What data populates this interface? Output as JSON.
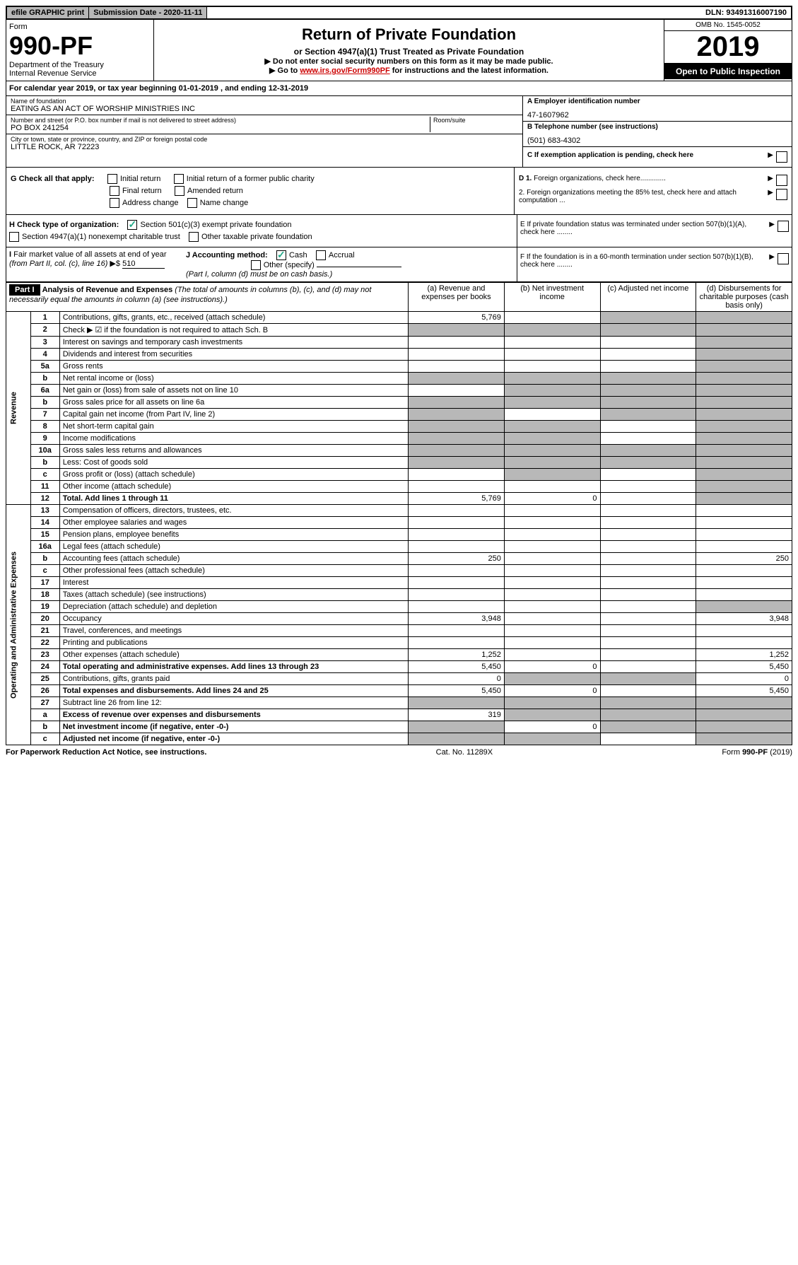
{
  "topbar": {
    "efile": "efile GRAPHIC print",
    "submission": "Submission Date - 2020-11-11",
    "dln": "DLN: 93491316007190"
  },
  "header": {
    "form_label": "Form",
    "form_num": "990-PF",
    "dept": "Department of the Treasury",
    "irs": "Internal Revenue Service",
    "title": "Return of Private Foundation",
    "subtitle": "or Section 4947(a)(1) Trust Treated as Private Foundation",
    "instr1": "▶ Do not enter social security numbers on this form as it may be made public.",
    "instr2_pre": "▶ Go to ",
    "instr2_link": "www.irs.gov/Form990PF",
    "instr2_post": " for instructions and the latest information.",
    "omb": "OMB No. 1545-0052",
    "year": "2019",
    "open": "Open to Public Inspection"
  },
  "calyear": "For calendar year 2019, or tax year beginning 01-01-2019            , and ending 12-31-2019",
  "info": {
    "name_label": "Name of foundation",
    "name": "EATING AS AN ACT OF WORSHIP MINISTRIES INC",
    "addr_label": "Number and street (or P.O. box number if mail is not delivered to street address)",
    "addr": "PO BOX 241254",
    "room_label": "Room/suite",
    "city_label": "City or town, state or province, country, and ZIP or foreign postal code",
    "city": "LITTLE ROCK, AR  72223",
    "ein_label": "A Employer identification number",
    "ein": "47-1607962",
    "phone_label": "B Telephone number (see instructions)",
    "phone": "(501) 683-4302",
    "c_label": "C  If exemption application is pending, check here"
  },
  "checks": {
    "g_label": "G Check all that apply:",
    "g1": "Initial return",
    "g2": "Initial return of a former public charity",
    "g3": "Final return",
    "g4": "Amended return",
    "g5": "Address change",
    "g6": "Name change",
    "h_label": "H Check type of organization:",
    "h1": "Section 501(c)(3) exempt private foundation",
    "h2": "Section 4947(a)(1) nonexempt charitable trust",
    "h3": "Other taxable private foundation",
    "i_label": "I Fair market value of all assets at end of year (from Part II, col. (c), line 16) ▶$",
    "i_val": "510",
    "j_label": "J Accounting method:",
    "j1": "Cash",
    "j2": "Accrual",
    "j3": "Other (specify)",
    "j_note": "(Part I, column (d) must be on cash basis.)",
    "d1": "D 1. Foreign organizations, check here.............",
    "d2": "2. Foreign organizations meeting the 85% test, check here and attach computation ...",
    "e": "E  If private foundation status was terminated under section 507(b)(1)(A), check here ........",
    "f": "F  If the foundation is in a 60-month termination under section 507(b)(1)(B), check here ........"
  },
  "part1": {
    "label": "Part I",
    "title": "Analysis of Revenue and Expenses",
    "note": "(The total of amounts in columns (b), (c), and (d) may not necessarily equal the amounts in column (a) (see instructions).)",
    "cols": {
      "a": "(a) Revenue and expenses per books",
      "b": "(b) Net investment income",
      "c": "(c) Adjusted net income",
      "d": "(d) Disbursements for charitable purposes (cash basis only)"
    }
  },
  "sides": {
    "revenue": "Revenue",
    "expenses": "Operating and Administrative Expenses"
  },
  "rows": [
    {
      "n": "1",
      "desc": "Contributions, gifts, grants, etc., received (attach schedule)",
      "a": "5,769",
      "b": "",
      "c": "grey",
      "d": "grey"
    },
    {
      "n": "2",
      "desc": "Check ▶ ☑ if the foundation is not required to attach Sch. B",
      "a": "grey",
      "b": "grey",
      "c": "grey",
      "d": "grey"
    },
    {
      "n": "3",
      "desc": "Interest on savings and temporary cash investments",
      "a": "",
      "b": "",
      "c": "",
      "d": "grey"
    },
    {
      "n": "4",
      "desc": "Dividends and interest from securities",
      "a": "",
      "b": "",
      "c": "",
      "d": "grey"
    },
    {
      "n": "5a",
      "desc": "Gross rents",
      "a": "",
      "b": "",
      "c": "",
      "d": "grey"
    },
    {
      "n": "b",
      "desc": "Net rental income or (loss)",
      "a": "grey",
      "b": "grey",
      "c": "grey",
      "d": "grey"
    },
    {
      "n": "6a",
      "desc": "Net gain or (loss) from sale of assets not on line 10",
      "a": "",
      "b": "grey",
      "c": "grey",
      "d": "grey"
    },
    {
      "n": "b",
      "desc": "Gross sales price for all assets on line 6a",
      "a": "grey",
      "b": "grey",
      "c": "grey",
      "d": "grey"
    },
    {
      "n": "7",
      "desc": "Capital gain net income (from Part IV, line 2)",
      "a": "grey",
      "b": "",
      "c": "grey",
      "d": "grey"
    },
    {
      "n": "8",
      "desc": "Net short-term capital gain",
      "a": "grey",
      "b": "grey",
      "c": "",
      "d": "grey"
    },
    {
      "n": "9",
      "desc": "Income modifications",
      "a": "grey",
      "b": "grey",
      "c": "",
      "d": "grey"
    },
    {
      "n": "10a",
      "desc": "Gross sales less returns and allowances",
      "a": "grey",
      "b": "grey",
      "c": "grey",
      "d": "grey"
    },
    {
      "n": "b",
      "desc": "Less: Cost of goods sold",
      "a": "grey",
      "b": "grey",
      "c": "grey",
      "d": "grey"
    },
    {
      "n": "c",
      "desc": "Gross profit or (loss) (attach schedule)",
      "a": "",
      "b": "grey",
      "c": "",
      "d": "grey"
    },
    {
      "n": "11",
      "desc": "Other income (attach schedule)",
      "a": "",
      "b": "",
      "c": "",
      "d": "grey"
    },
    {
      "n": "12",
      "desc": "Total. Add lines 1 through 11",
      "a": "5,769",
      "b": "0",
      "c": "",
      "d": "grey",
      "bold": true
    }
  ],
  "rows2": [
    {
      "n": "13",
      "desc": "Compensation of officers, directors, trustees, etc.",
      "a": "",
      "b": "",
      "c": "",
      "d": ""
    },
    {
      "n": "14",
      "desc": "Other employee salaries and wages",
      "a": "",
      "b": "",
      "c": "",
      "d": ""
    },
    {
      "n": "15",
      "desc": "Pension plans, employee benefits",
      "a": "",
      "b": "",
      "c": "",
      "d": ""
    },
    {
      "n": "16a",
      "desc": "Legal fees (attach schedule)",
      "a": "",
      "b": "",
      "c": "",
      "d": ""
    },
    {
      "n": "b",
      "desc": "Accounting fees (attach schedule)",
      "a": "250",
      "b": "",
      "c": "",
      "d": "250"
    },
    {
      "n": "c",
      "desc": "Other professional fees (attach schedule)",
      "a": "",
      "b": "",
      "c": "",
      "d": ""
    },
    {
      "n": "17",
      "desc": "Interest",
      "a": "",
      "b": "",
      "c": "",
      "d": ""
    },
    {
      "n": "18",
      "desc": "Taxes (attach schedule) (see instructions)",
      "a": "",
      "b": "",
      "c": "",
      "d": ""
    },
    {
      "n": "19",
      "desc": "Depreciation (attach schedule) and depletion",
      "a": "",
      "b": "",
      "c": "",
      "d": "grey"
    },
    {
      "n": "20",
      "desc": "Occupancy",
      "a": "3,948",
      "b": "",
      "c": "",
      "d": "3,948"
    },
    {
      "n": "21",
      "desc": "Travel, conferences, and meetings",
      "a": "",
      "b": "",
      "c": "",
      "d": ""
    },
    {
      "n": "22",
      "desc": "Printing and publications",
      "a": "",
      "b": "",
      "c": "",
      "d": ""
    },
    {
      "n": "23",
      "desc": "Other expenses (attach schedule)",
      "a": "1,252",
      "b": "",
      "c": "",
      "d": "1,252"
    },
    {
      "n": "24",
      "desc": "Total operating and administrative expenses. Add lines 13 through 23",
      "a": "5,450",
      "b": "0",
      "c": "",
      "d": "5,450",
      "bold": true
    },
    {
      "n": "25",
      "desc": "Contributions, gifts, grants paid",
      "a": "0",
      "b": "grey",
      "c": "grey",
      "d": "0"
    },
    {
      "n": "26",
      "desc": "Total expenses and disbursements. Add lines 24 and 25",
      "a": "5,450",
      "b": "0",
      "c": "",
      "d": "5,450",
      "bold": true
    },
    {
      "n": "27",
      "desc": "Subtract line 26 from line 12:",
      "a": "grey",
      "b": "grey",
      "c": "grey",
      "d": "grey"
    },
    {
      "n": "a",
      "desc": "Excess of revenue over expenses and disbursements",
      "a": "319",
      "b": "grey",
      "c": "grey",
      "d": "grey",
      "bold": true
    },
    {
      "n": "b",
      "desc": "Net investment income (if negative, enter -0-)",
      "a": "grey",
      "b": "0",
      "c": "grey",
      "d": "grey",
      "bold": true
    },
    {
      "n": "c",
      "desc": "Adjusted net income (if negative, enter -0-)",
      "a": "grey",
      "b": "grey",
      "c": "",
      "d": "grey",
      "bold": true
    }
  ],
  "footer": {
    "left": "For Paperwork Reduction Act Notice, see instructions.",
    "center": "Cat. No. 11289X",
    "right": "Form 990-PF (2019)"
  }
}
